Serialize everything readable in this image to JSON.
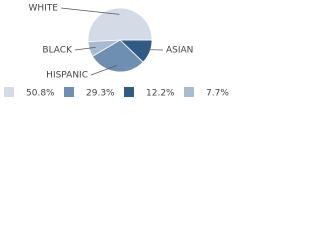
{
  "chart_data": {
    "type": "pie",
    "categories": [
      "WHITE",
      "HISPANIC",
      "ASIAN",
      "BLACK"
    ],
    "values": [
      50.8,
      29.3,
      12.2,
      7.7
    ],
    "value_labels": [
      "50.8%",
      "29.3%",
      "12.2%",
      "7.7%"
    ],
    "colors": [
      "#d3dbe6",
      "#6f8fb2",
      "#2f5b84",
      "#a8bbd0"
    ]
  }
}
